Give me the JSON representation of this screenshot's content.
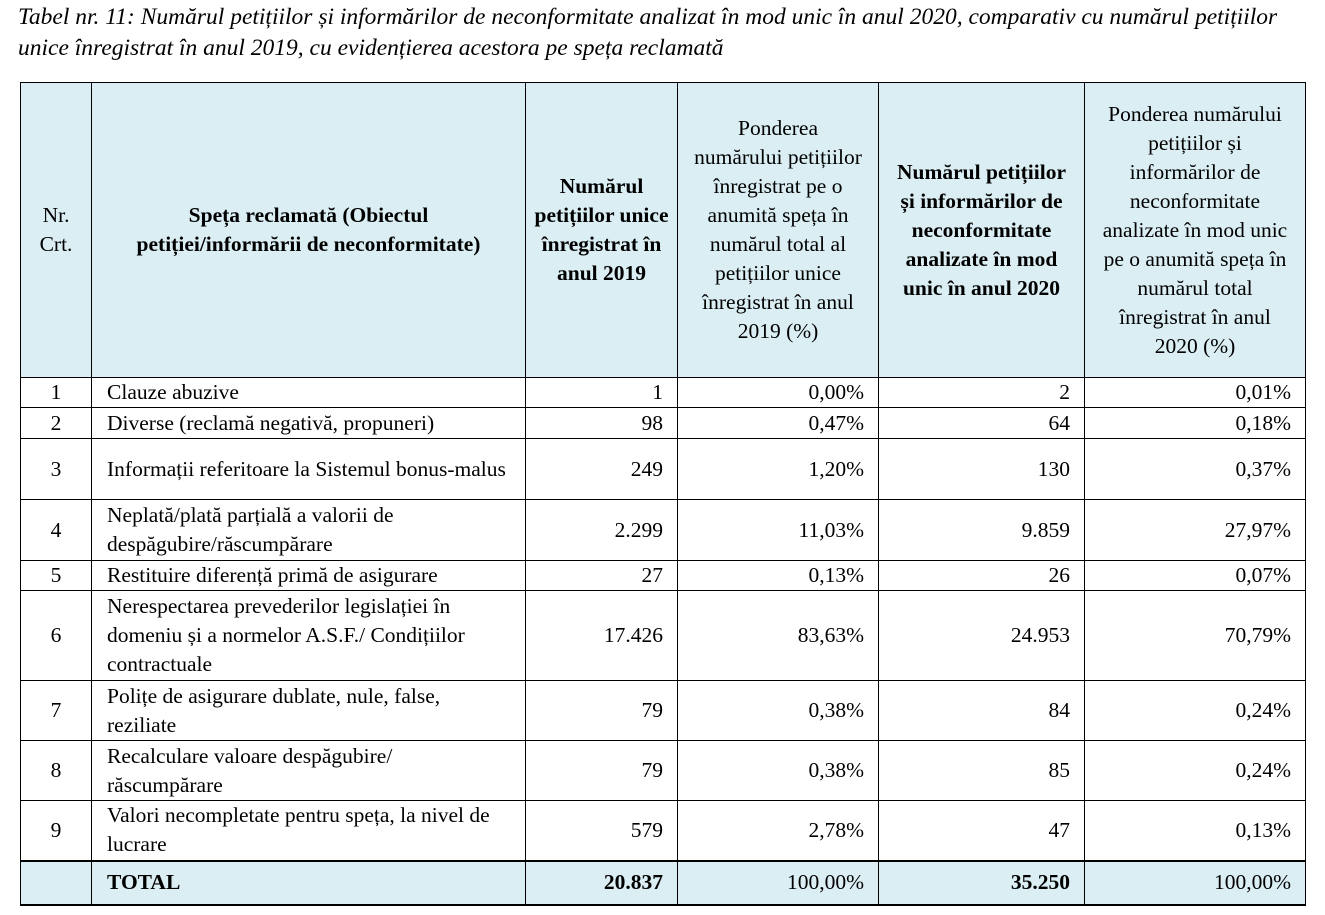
{
  "caption": "Tabel nr. 11: Numărul petițiilor și informărilor de neconformitate analizat în mod unic în anul 2020, comparativ cu numărul petițiilor unice înregistrat în anul 2019, cu evidențierea acestora pe spețа reclamată",
  "headers": {
    "nr": "Nr. Crt.",
    "speta": "Spețа reclamată (Obiectul petiției/informării de neconformitate)",
    "nr2019": "Numărul petițiilor unice înregistrat în anul 2019",
    "pond2019": "Ponderea numărului petițiilor înregistrat pe o anumită spețа în numărul total al petițiilor unice înregistrat în anul 2019 (%)",
    "nr2020": "Numărul petițiilor și informărilor de neconformitate analizate în mod unic în anul 2020",
    "pond2020": "Ponderea numărului petițiilor și informărilor de neconformitate analizate în mod unic pe o anumită spețа în numărul total înregistrat în anul 2020 (%)"
  },
  "rows": [
    {
      "nr": "1",
      "speta": "Clauze abuzive",
      "n2019": "1",
      "p2019": "0,00%",
      "n2020": "2",
      "p2020": "0,01%"
    },
    {
      "nr": "2",
      "speta": "Diverse (reclamă negativă, propuneri)",
      "n2019": "98",
      "p2019": "0,47%",
      "n2020": "64",
      "p2020": "0,18%"
    },
    {
      "nr": "3",
      "speta": "Informații referitoare la Sistemul bonus-malus",
      "n2019": "249",
      "p2019": "1,20%",
      "n2020": "130",
      "p2020": "0,37%"
    },
    {
      "nr": "4",
      "speta": "Neplată/plată parțială a valorii de despăgubire/răscumpărare",
      "n2019": "2.299",
      "p2019": "11,03%",
      "n2020": "9.859",
      "p2020": "27,97%"
    },
    {
      "nr": "5",
      "speta": "Restituire diferență primă de asigurare",
      "n2019": "27",
      "p2019": "0,13%",
      "n2020": "26",
      "p2020": "0,07%"
    },
    {
      "nr": "6",
      "speta": "Nerespectarea prevederilor legislației în domeniu și a normelor A.S.F./ Condițiilor contractuale",
      "n2019": "17.426",
      "p2019": "83,63%",
      "n2020": "24.953",
      "p2020": "70,79%"
    },
    {
      "nr": "7",
      "speta": "Polițe de asigurare dublate, nule, false, reziliate",
      "n2019": "79",
      "p2019": "0,38%",
      "n2020": "84",
      "p2020": "0,24%"
    },
    {
      "nr": "8",
      "speta": "Recalculare valoare despăgubire/ răscumpărare",
      "n2019": "79",
      "p2019": "0,38%",
      "n2020": "85",
      "p2020": "0,24%"
    },
    {
      "nr": "9",
      "speta": "Valori necompletate pentru spețа, la nivel de lucrare",
      "n2019": "579",
      "p2019": "2,78%",
      "n2020": "47",
      "p2020": "0,13%"
    }
  ],
  "total": {
    "label": "TOTAL",
    "n2019": "20.837",
    "p2019": "100,00%",
    "n2020": "35.250",
    "p2020": "100,00%"
  }
}
